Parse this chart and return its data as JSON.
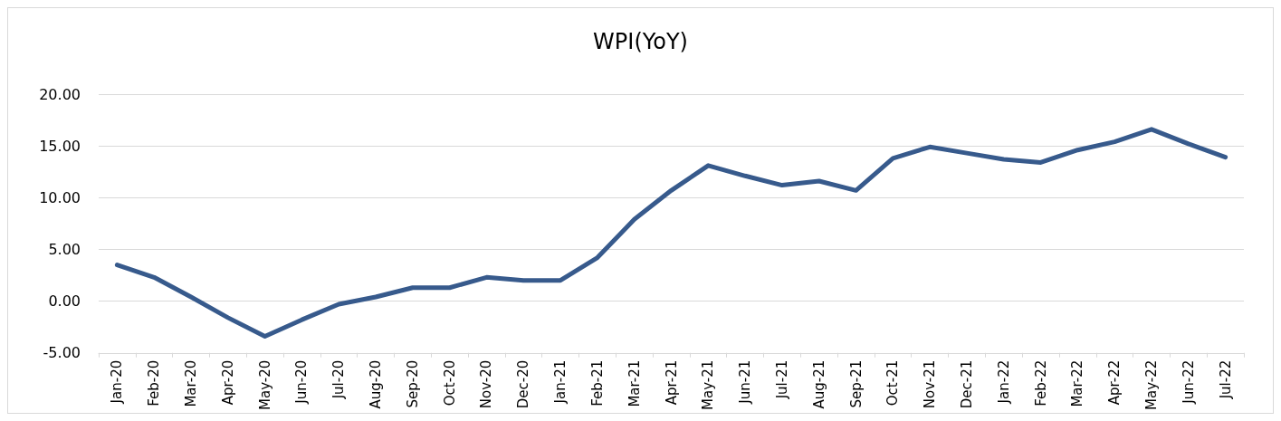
{
  "chart_data": {
    "type": "line",
    "title": "WPI(YoY)",
    "categories": [
      "Jan-20",
      "Feb-20",
      "Mar-20",
      "Apr-20",
      "May-20",
      "Jun-20",
      "Jul-20",
      "Aug-20",
      "Sep-20",
      "Oct-20",
      "Nov-20",
      "Dec-20",
      "Jan-21",
      "Feb-21",
      "Mar-21",
      "Apr-21",
      "May-21",
      "Jun-21",
      "Jul-21",
      "Aug-21",
      "Sep-21",
      "Oct-21",
      "Nov-21",
      "Dec-21",
      "Jan-22",
      "Feb-22",
      "Mar-22",
      "Apr-22",
      "May-22",
      "Jun-22",
      "Jul-22"
    ],
    "series": [
      {
        "color": "#375a8c",
        "values": [
          3.5,
          2.3,
          0.4,
          -1.6,
          -3.4,
          -1.8,
          -0.3,
          0.4,
          1.3,
          1.3,
          2.3,
          2.0,
          2.0,
          4.2,
          7.9,
          10.7,
          13.1,
          12.1,
          11.2,
          11.6,
          10.7,
          13.8,
          14.9,
          14.3,
          13.7,
          13.4,
          14.6,
          15.4,
          16.6,
          15.2,
          13.9
        ]
      }
    ],
    "ylim": [
      -5,
      20
    ],
    "yticks": [
      {
        "value": -5,
        "label": "-5.00"
      },
      {
        "value": 0,
        "label": "0.00"
      },
      {
        "value": 5,
        "label": "5.00"
      },
      {
        "value": 10,
        "label": "10.00"
      },
      {
        "value": 15,
        "label": "15.00"
      },
      {
        "value": 20,
        "label": "20.00"
      }
    ],
    "grid": "y",
    "marker": "none",
    "line_style": "solid"
  }
}
